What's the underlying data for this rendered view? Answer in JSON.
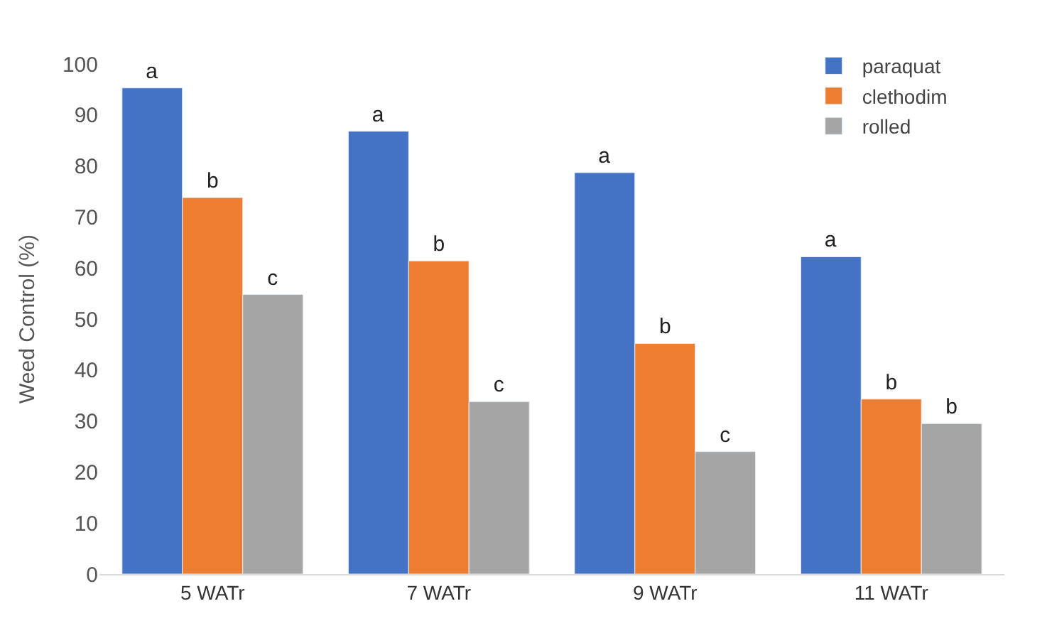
{
  "chart_data": {
    "type": "bar",
    "ylabel": "Weed Control (%)",
    "categories": [
      "5 WATr",
      "7 WATr",
      "9 WATr",
      "11 WATr"
    ],
    "series": [
      {
        "name": "paraquat",
        "color": "#4472c4",
        "values": [
          95.3,
          86.8,
          78.7,
          62.2
        ],
        "value_labels": [
          "a",
          "a",
          "a",
          "a"
        ]
      },
      {
        "name": "clethodim",
        "color": "#ed7d31",
        "values": [
          73.8,
          61.4,
          45.2,
          34.3
        ],
        "value_labels": [
          "b",
          "b",
          "b",
          "b"
        ]
      },
      {
        "name": "rolled",
        "color": "#a5a5a5",
        "values": [
          54.8,
          33.8,
          24,
          29.5
        ],
        "value_labels": [
          "c",
          "c",
          "c",
          "b"
        ]
      }
    ],
    "ylim": [
      0,
      100
    ],
    "yticks": [
      0,
      10,
      20,
      30,
      40,
      50,
      60,
      70,
      80,
      90,
      100
    ],
    "legend": "top right"
  }
}
